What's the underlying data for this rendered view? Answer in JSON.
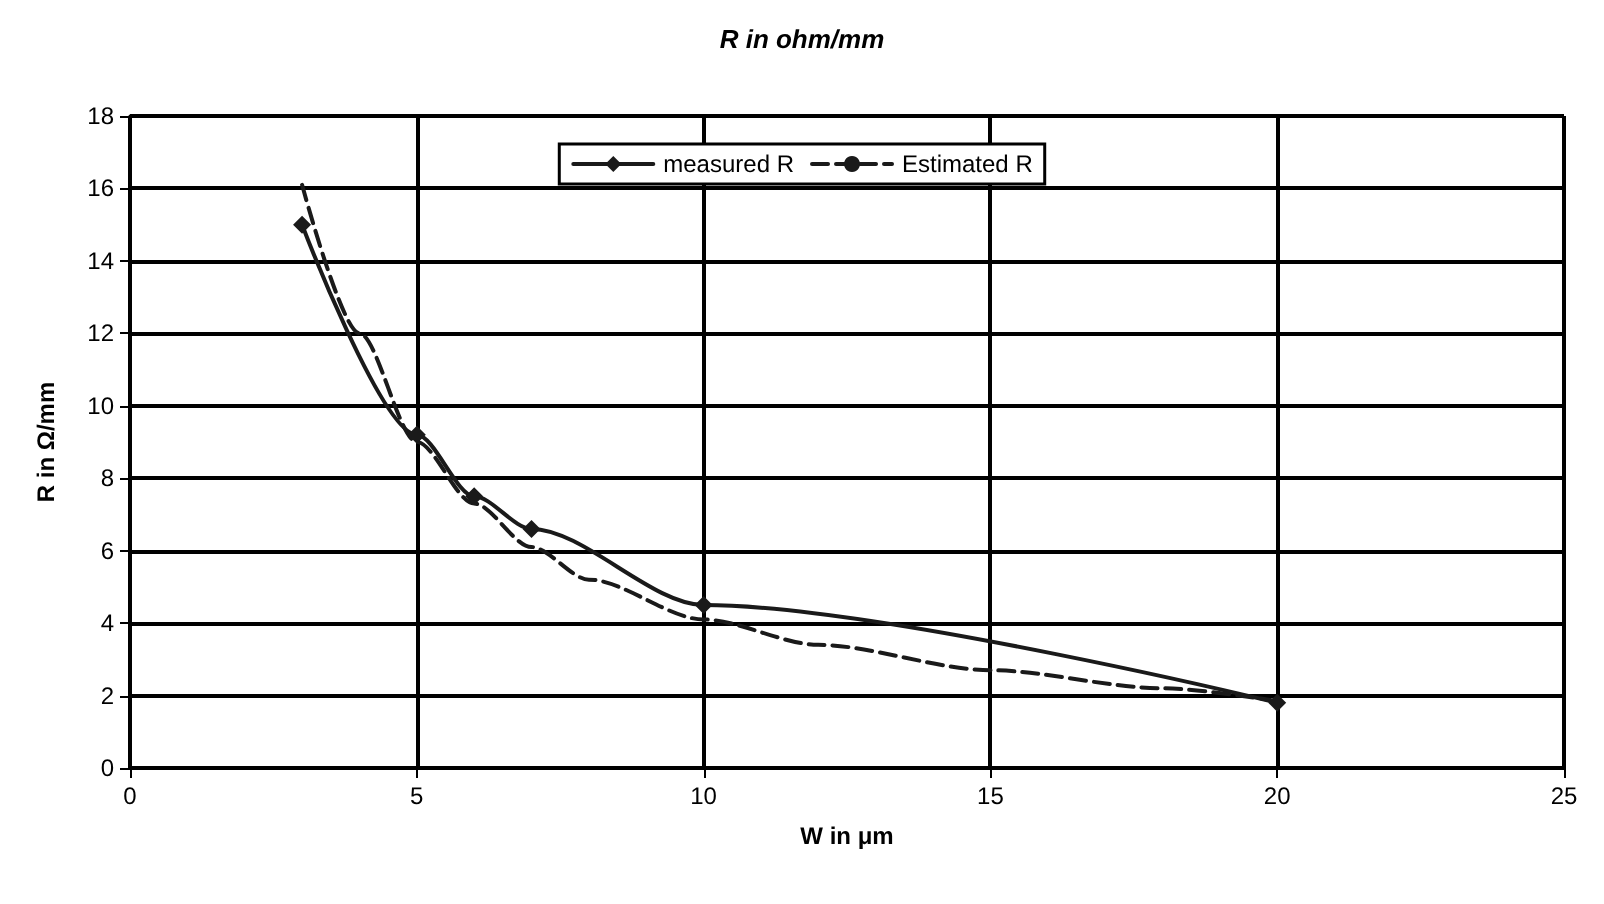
{
  "chart_data": {
    "type": "line",
    "title": "R in ohm/mm",
    "xlabel": "W in μm",
    "ylabel": "R in Ω/mm",
    "xlim": [
      0,
      25
    ],
    "xticks": [
      0,
      5,
      10,
      15,
      20,
      25
    ],
    "ylim": [
      0,
      18
    ],
    "yticks": [
      0,
      2,
      4,
      6,
      8,
      10,
      12,
      14,
      16,
      18
    ],
    "grid": true,
    "legend": "top",
    "series": [
      {
        "name": "measured R",
        "color": "#1a1a1a",
        "marker": "diamond",
        "line_style": "solid",
        "x": [
          3,
          5,
          6,
          7,
          10,
          20
        ],
        "values": [
          15,
          9.2,
          7.5,
          6.6,
          4.5,
          1.8
        ]
      },
      {
        "name": "Estimated R",
        "color": "#1a1a1a",
        "marker": "none",
        "line_style": "dashed",
        "x": [
          3,
          4,
          5,
          6,
          7,
          8,
          10,
          12,
          15,
          18,
          20
        ],
        "values": [
          16.1,
          12,
          9,
          7.3,
          6.1,
          5.2,
          4.1,
          3.4,
          2.7,
          2.2,
          1.85
        ]
      }
    ]
  }
}
